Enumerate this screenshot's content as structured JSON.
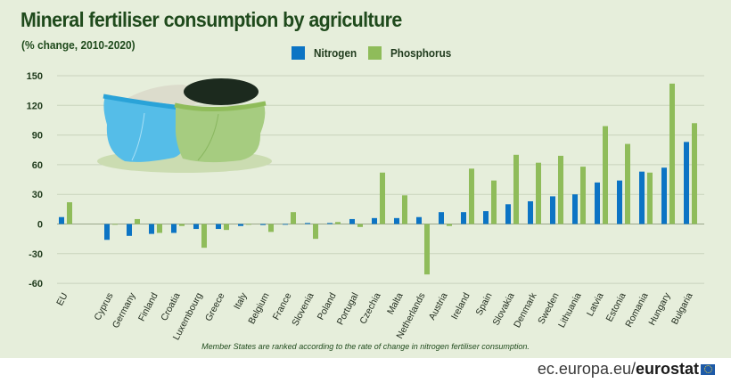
{
  "header": {
    "title": "Mineral fertiliser consumption by agriculture",
    "subtitle": "(% change, 2010-2020)"
  },
  "legend": [
    {
      "name": "Nitrogen",
      "color": "#0c74c4"
    },
    {
      "name": "Phosphorus",
      "color": "#8fbc5a"
    }
  ],
  "footnote": "Member States are ranked according to the rate of change in nitrogen fertiliser consumption.",
  "source": {
    "prefix": "ec.europa.eu/",
    "brand": "eurostat"
  },
  "illustration": {
    "icon": "fertiliser-sacks-illustration"
  },
  "chart_data": {
    "type": "bar",
    "title": "Mineral fertiliser consumption by agriculture",
    "subtitle": "(% change, 2010-2020)",
    "xlabel": "",
    "ylabel": "",
    "ylim": [
      -60,
      150
    ],
    "yticks": [
      150,
      120,
      90,
      60,
      30,
      0,
      -30,
      -60
    ],
    "grid": true,
    "legend_position": "top",
    "categories": [
      "EU",
      "Cyprus",
      "Germany",
      "Finland",
      "Croatia",
      "Luxembourg",
      "Greece",
      "Italy",
      "Belgium",
      "France",
      "Slovenia",
      "Poland",
      "Portugal",
      "Czechia",
      "Malta",
      "Netherlands",
      "Austria",
      "Ireland",
      "Spain",
      "Slovakia",
      "Denmark",
      "Sweden",
      "Lithuania",
      "Latvia",
      "Estonia",
      "Romania",
      "Hungary",
      "Bulgaria"
    ],
    "series": [
      {
        "name": "Nitrogen",
        "color": "#0c74c4",
        "values": [
          7,
          -16,
          -12,
          -10,
          -9,
          -5,
          -5,
          -2,
          -1,
          0,
          1,
          1,
          5,
          6,
          6,
          7,
          12,
          12,
          13,
          20,
          23,
          28,
          30,
          42,
          44,
          53,
          57,
          83
        ]
      },
      {
        "name": "Phosphorus",
        "color": "#8fbc5a",
        "values": [
          22,
          0,
          5,
          -9,
          -2,
          -24,
          -6,
          0,
          -8,
          12,
          -15,
          2,
          -3,
          52,
          29,
          -51,
          -2,
          56,
          44,
          70,
          62,
          69,
          58,
          99,
          81,
          52,
          142,
          102
        ]
      }
    ]
  }
}
